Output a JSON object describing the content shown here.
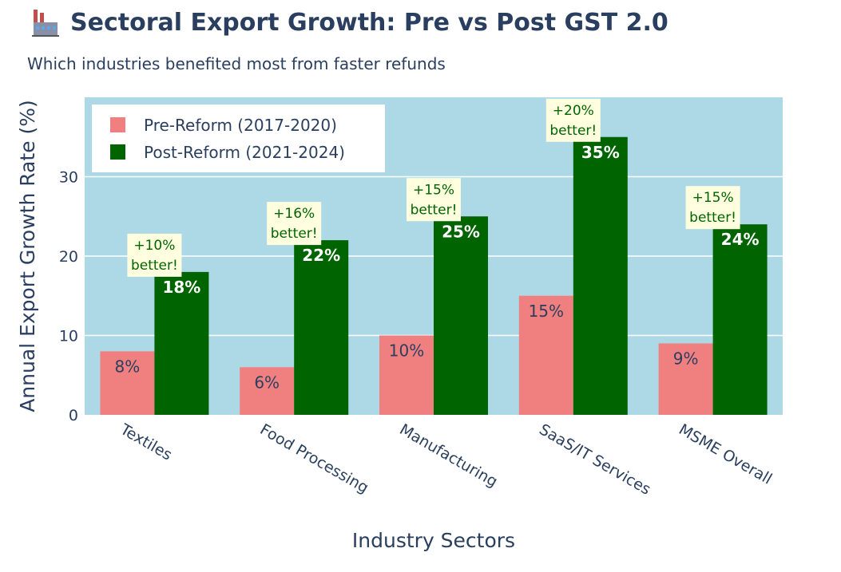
{
  "title": "Sectoral Export Growth: Pre vs Post GST 2.0",
  "title_icon": "factory-icon",
  "subtitle": "Which industries benefited most from faster refunds",
  "colors": {
    "pre": "#f08080",
    "post": "#006400",
    "plot_bg": "#add8e6",
    "annotation_bg": "#ffffe0",
    "annotation_text": "#006400",
    "text": "#2a3f5f"
  },
  "chart_data": {
    "type": "bar",
    "title": "Sectoral Export Growth: Pre vs Post GST 2.0",
    "subtitle": "Which industries benefited most from faster refunds",
    "xlabel": "Industry Sectors",
    "ylabel": "Annual Export Growth Rate (%)",
    "ylim": [
      0,
      40
    ],
    "yticks": [
      0,
      10,
      20,
      30
    ],
    "grid": true,
    "legend_position": "top-left",
    "categories": [
      "Textiles",
      "Food Processing",
      "Manufacturing",
      "SaaS/IT Services",
      "MSME Overall"
    ],
    "series": [
      {
        "name": "Pre-Reform (2017-2020)",
        "values": [
          8,
          6,
          10,
          15,
          9
        ],
        "labels": [
          "8%",
          "6%",
          "10%",
          "15%",
          "9%"
        ]
      },
      {
        "name": "Post-Reform (2021-2024)",
        "values": [
          18,
          22,
          25,
          35,
          24
        ],
        "labels": [
          "18%",
          "22%",
          "25%",
          "35%",
          "24%"
        ]
      }
    ],
    "annotations": [
      {
        "line1": "+10%",
        "line2": "better!"
      },
      {
        "line1": "+16%",
        "line2": "better!"
      },
      {
        "line1": "+15%",
        "line2": "better!"
      },
      {
        "line1": "+20%",
        "line2": "better!"
      },
      {
        "line1": "+15%",
        "line2": "better!"
      }
    ]
  }
}
